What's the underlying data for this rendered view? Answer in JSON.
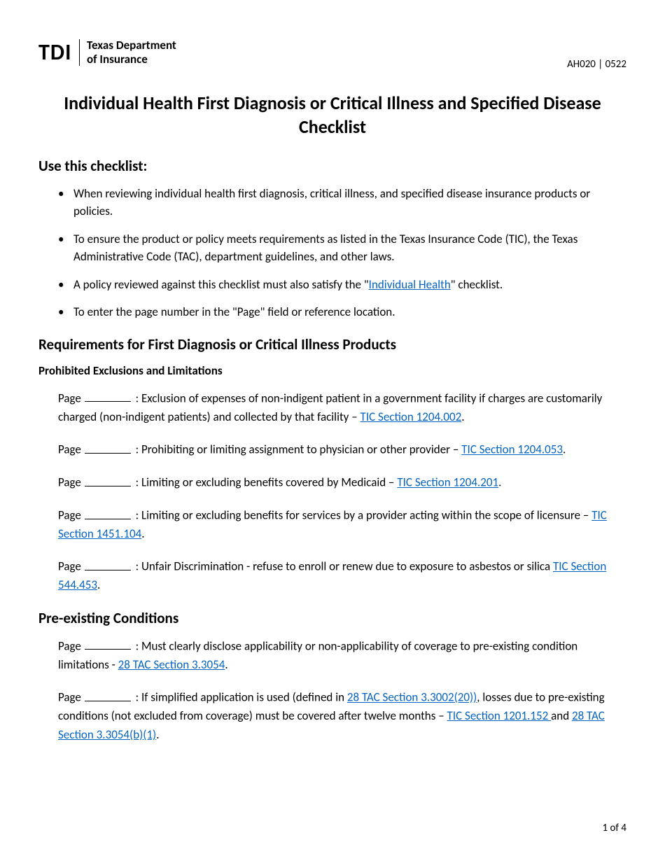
{
  "header": {
    "logo_acronym": "TDI",
    "dept_line1": "Texas Department",
    "dept_line2": "of Insurance",
    "form_code": "AH020 | 0522"
  },
  "title": "Individual Health First Diagnosis or Critical Illness and Specified Disease Checklist",
  "section1": {
    "heading": "Use this checklist:",
    "bullets": [
      {
        "text_a": "When reviewing individual health first diagnosis, critical illness, and specified disease insurance products or policies."
      },
      {
        "text_a": "To ensure the product or policy meets requirements as listed in the Texas Insurance Code (TIC), the Texas Administrative Code (TAC), department guidelines, and other laws."
      },
      {
        "text_a": "A policy reviewed against this checklist must also satisfy the \"",
        "link": "Individual Health",
        "text_b": "\" checklist."
      },
      {
        "text_a": "To enter the page number in the \"Page\" field or reference location."
      }
    ]
  },
  "section2": {
    "heading": "Requirements for First Diagnosis or Critical Illness Products",
    "subheading": "Prohibited Exclusions and Limitations",
    "page_label": "Page",
    "items": [
      {
        "t1": " : Exclusion of expenses of non-indigent patient in a government facility if charges are  customarily charged (non-indigent patients) and collected by that facility – ",
        "l1": "TIC Section 1204.002",
        "t2": "."
      },
      {
        "t1": " : Prohibiting or limiting assignment to physician or other provider – ",
        "l1": "TIC Section 1204.053",
        "t2": "."
      },
      {
        "t1": " : Limiting or excluding benefits covered by Medicaid – ",
        "l1": "TIC Section 1204.201",
        "t2": "."
      },
      {
        "t1": " : Limiting or excluding benefits for services by a provider acting within the scope of licensure – ",
        "l1": "TIC Section 1451.104",
        "t2": "."
      },
      {
        "t1": " : Unfair Discrimination - refuse to enroll or renew due to exposure to asbestos or silica ",
        "l1": "TIC Section 544.453",
        "t2": "."
      }
    ]
  },
  "section3": {
    "heading": "Pre-existing Conditions",
    "page_label": "Page",
    "items": [
      {
        "t1": " : Must clearly disclose applicability or non-applicability of coverage to pre-existing condition limitations - ",
        "l1": "28 TAC Section 3.3054",
        "t2": "."
      },
      {
        "t1": " : If simplified application is used (defined in ",
        "l1": "28 TAC Section 3.3002(20))",
        "t2": ", losses due to pre-existing conditions (not excluded from coverage) must be covered after twelve months – ",
        "l2": "TIC Section 1201.152 ",
        "t3": "and ",
        "l3": "28 TAC Section 3.3054(b)(1)",
        "t4": "."
      }
    ]
  },
  "footer": {
    "page_number": "1 of 4"
  },
  "colors": {
    "link": "#0563c1",
    "text": "#000000",
    "bg": "#ffffff"
  }
}
